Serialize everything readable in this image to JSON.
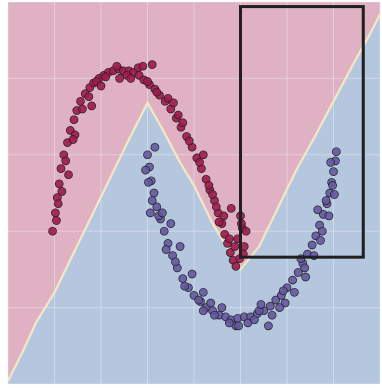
{
  "chart_data": {
    "type": "scatter",
    "title": "",
    "xlabel": "",
    "ylabel": "",
    "xlim": [
      -1.5,
      2.5
    ],
    "ylim": [
      -1.0,
      1.5
    ],
    "grid": true,
    "legend": "none",
    "colors": {
      "region_upper": "#dfb1c2",
      "region_lower": "#b5c7df",
      "boundary": "#f3e8c5",
      "grid": "#eef0f7",
      "class_0": "#a01a4a",
      "class_1": "#6456a0",
      "point_edge": "#222222",
      "highlight_box": "#1f1f1f"
    },
    "decision_boundary": {
      "x": [
        -1.5,
        -1.35,
        -1.2,
        -1.0,
        -0.8,
        -0.6,
        -0.4,
        -0.2,
        0.0,
        0.15,
        0.35,
        0.5,
        0.7,
        0.9,
        1.0,
        1.2,
        1.4,
        1.6,
        1.8,
        2.0,
        2.2,
        2.4,
        2.5
      ],
      "y": [
        -0.98,
        -0.8,
        -0.6,
        -0.4,
        -0.15,
        0.1,
        0.35,
        0.6,
        0.84,
        0.68,
        0.45,
        0.3,
        0.05,
        -0.15,
        -0.25,
        -0.1,
        0.15,
        0.4,
        0.62,
        0.85,
        1.08,
        1.3,
        1.42
      ]
    },
    "highlight_box": {
      "x": [
        1.0,
        2.32
      ],
      "y": [
        -0.17,
        1.47
      ]
    },
    "series": [
      {
        "label": "0",
        "x": [
          -1.02,
          -0.99,
          -0.97,
          -0.95,
          -0.93,
          -0.9,
          -0.86,
          -0.83,
          -0.79,
          -0.76,
          -0.72,
          -0.67,
          -0.62,
          -0.58,
          -0.52,
          -0.47,
          -0.42,
          -0.37,
          -0.31,
          -0.26,
          -0.2,
          -0.15,
          -0.09,
          -0.04,
          0.02,
          0.08,
          0.13,
          0.19,
          0.25,
          0.31,
          0.36,
          0.42,
          0.48,
          0.53,
          0.58,
          0.63,
          0.67,
          0.72,
          0.76,
          0.8,
          0.83,
          0.86,
          0.89,
          0.92,
          0.95,
          0.97,
          1.0,
          1.02,
          1.04,
          1.06,
          -0.98,
          -0.92,
          -0.88,
          -0.78,
          -0.7,
          -0.63,
          -0.55,
          -0.45,
          -0.33,
          -0.22,
          -0.1,
          0.0,
          0.1,
          0.22,
          0.33,
          0.45,
          0.56,
          0.66,
          0.74,
          0.82,
          0.88,
          0.94,
          0.99,
          -0.85,
          -0.6,
          -0.3,
          0.05,
          0.38,
          0.7,
          0.9,
          1.03,
          0.77,
          0.28,
          -0.18,
          -0.5,
          -0.8,
          -0.96,
          1.01,
          0.6,
          -0.05
        ],
        "y": [
          0.0,
          0.12,
          0.22,
          0.31,
          0.41,
          0.5,
          0.58,
          0.66,
          0.73,
          0.79,
          0.85,
          0.9,
          0.94,
          0.97,
          1.0,
          1.02,
          1.04,
          1.05,
          1.06,
          1.05,
          1.05,
          1.04,
          1.02,
          0.99,
          0.96,
          0.93,
          0.89,
          0.85,
          0.8,
          0.74,
          0.68,
          0.62,
          0.55,
          0.48,
          0.41,
          0.34,
          0.27,
          0.2,
          0.12,
          0.05,
          -0.02,
          -0.08,
          -0.14,
          -0.19,
          -0.23,
          -0.05,
          0.1,
          0.02,
          -0.1,
          0.0,
          0.07,
          0.26,
          0.46,
          0.63,
          0.8,
          0.88,
          0.98,
          1.01,
          1.08,
          1.02,
          1.07,
          0.98,
          0.91,
          0.87,
          0.76,
          0.59,
          0.45,
          0.3,
          0.16,
          0.1,
          -0.05,
          -0.1,
          -0.18,
          0.37,
          0.82,
          1.0,
          1.09,
          0.71,
          0.24,
          0.15,
          -0.15,
          0.06,
          0.84,
          1.0,
          0.95,
          0.6,
          0.18,
          0.05,
          0.5,
          1.08
        ]
      },
      {
        "label": "1",
        "x": [
          0.0,
          0.02,
          0.04,
          0.07,
          0.1,
          0.14,
          0.18,
          0.22,
          0.27,
          0.32,
          0.38,
          0.44,
          0.5,
          0.57,
          0.63,
          0.7,
          0.77,
          0.84,
          0.9,
          0.97,
          1.04,
          1.11,
          1.18,
          1.25,
          1.32,
          1.38,
          1.44,
          1.5,
          1.56,
          1.62,
          1.67,
          1.72,
          1.77,
          1.81,
          1.85,
          1.89,
          1.93,
          1.96,
          1.98,
          2.0,
          2.02,
          2.03,
          -0.02,
          0.05,
          0.12,
          0.2,
          0.3,
          0.4,
          0.55,
          0.68,
          0.8,
          0.95,
          1.08,
          1.2,
          1.34,
          1.46,
          1.58,
          1.69,
          1.79,
          1.88,
          1.95,
          2.01,
          0.08,
          0.25,
          0.48,
          0.72,
          0.98,
          1.22,
          1.48,
          1.7,
          1.86,
          1.99,
          0.01,
          0.16,
          0.35,
          0.6,
          0.88,
          1.15,
          1.42,
          1.65,
          1.83,
          1.97,
          1.92,
          0.03,
          0.6,
          1.3
        ],
        "y": [
          0.5,
          0.42,
          0.33,
          0.25,
          0.16,
          0.08,
          0.0,
          -0.08,
          -0.16,
          -0.24,
          -0.31,
          -0.37,
          -0.42,
          -0.46,
          -0.5,
          -0.52,
          -0.55,
          -0.56,
          -0.58,
          -0.57,
          -0.56,
          -0.56,
          -0.54,
          -0.52,
          -0.49,
          -0.45,
          -0.42,
          -0.37,
          -0.32,
          -0.27,
          -0.21,
          -0.15,
          -0.09,
          -0.03,
          0.04,
          0.11,
          0.18,
          0.25,
          0.32,
          0.39,
          0.46,
          0.52,
          0.4,
          0.2,
          0.1,
          -0.12,
          -0.2,
          -0.36,
          -0.45,
          -0.47,
          -0.5,
          -0.62,
          -0.6,
          -0.52,
          -0.55,
          -0.39,
          -0.4,
          -0.24,
          -0.16,
          0.0,
          0.1,
          0.24,
          0.55,
          0.05,
          -0.28,
          -0.55,
          -0.62,
          -0.48,
          -0.47,
          -0.3,
          -0.06,
          0.3,
          0.32,
          0.12,
          -0.1,
          -0.4,
          -0.6,
          -0.58,
          -0.5,
          -0.18,
          0.14,
          0.45,
          0.2,
          0.12,
          -0.52,
          -0.62
        ]
      }
    ]
  }
}
